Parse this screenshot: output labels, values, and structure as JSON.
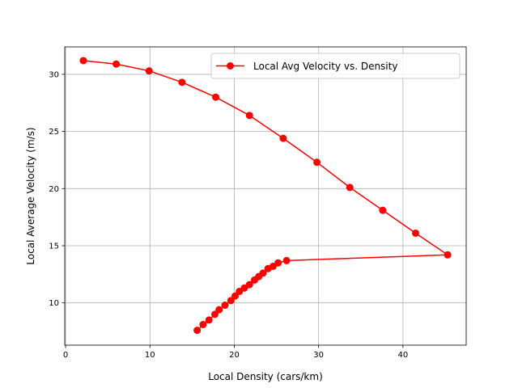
{
  "chart_data": {
    "type": "line",
    "title": "",
    "xlabel": "Local Density (cars/km)",
    "ylabel": "Local Average Velocity (m/s)",
    "xlim": [
      -0.1,
      47.5
    ],
    "ylim": [
      6.3,
      32.4
    ],
    "x_ticks": [
      0,
      10,
      20,
      30,
      40
    ],
    "y_ticks": [
      10,
      15,
      20,
      25,
      30
    ],
    "grid": true,
    "legend_position": "top-right",
    "series": [
      {
        "name": "Local Avg Velocity vs. Density",
        "color": "#ff0000",
        "marker": "circle",
        "x": [
          2.1,
          6.0,
          9.9,
          13.8,
          17.8,
          21.8,
          25.8,
          29.8,
          33.7,
          37.6,
          41.5,
          45.3,
          26.2,
          25.2,
          24.6,
          24.0,
          23.4,
          22.9,
          22.4,
          21.8,
          21.2,
          20.6,
          20.1,
          19.6,
          18.9,
          18.2,
          17.7,
          17.0,
          16.3,
          15.6
        ],
        "y": [
          31.2,
          30.9,
          30.3,
          29.3,
          28.0,
          26.4,
          24.4,
          22.3,
          20.1,
          18.1,
          16.1,
          14.2,
          13.7,
          13.5,
          13.2,
          13.0,
          12.6,
          12.3,
          12.0,
          11.6,
          11.3,
          11.0,
          10.6,
          10.2,
          9.8,
          9.4,
          9.0,
          8.5,
          8.1,
          7.6
        ]
      }
    ]
  }
}
